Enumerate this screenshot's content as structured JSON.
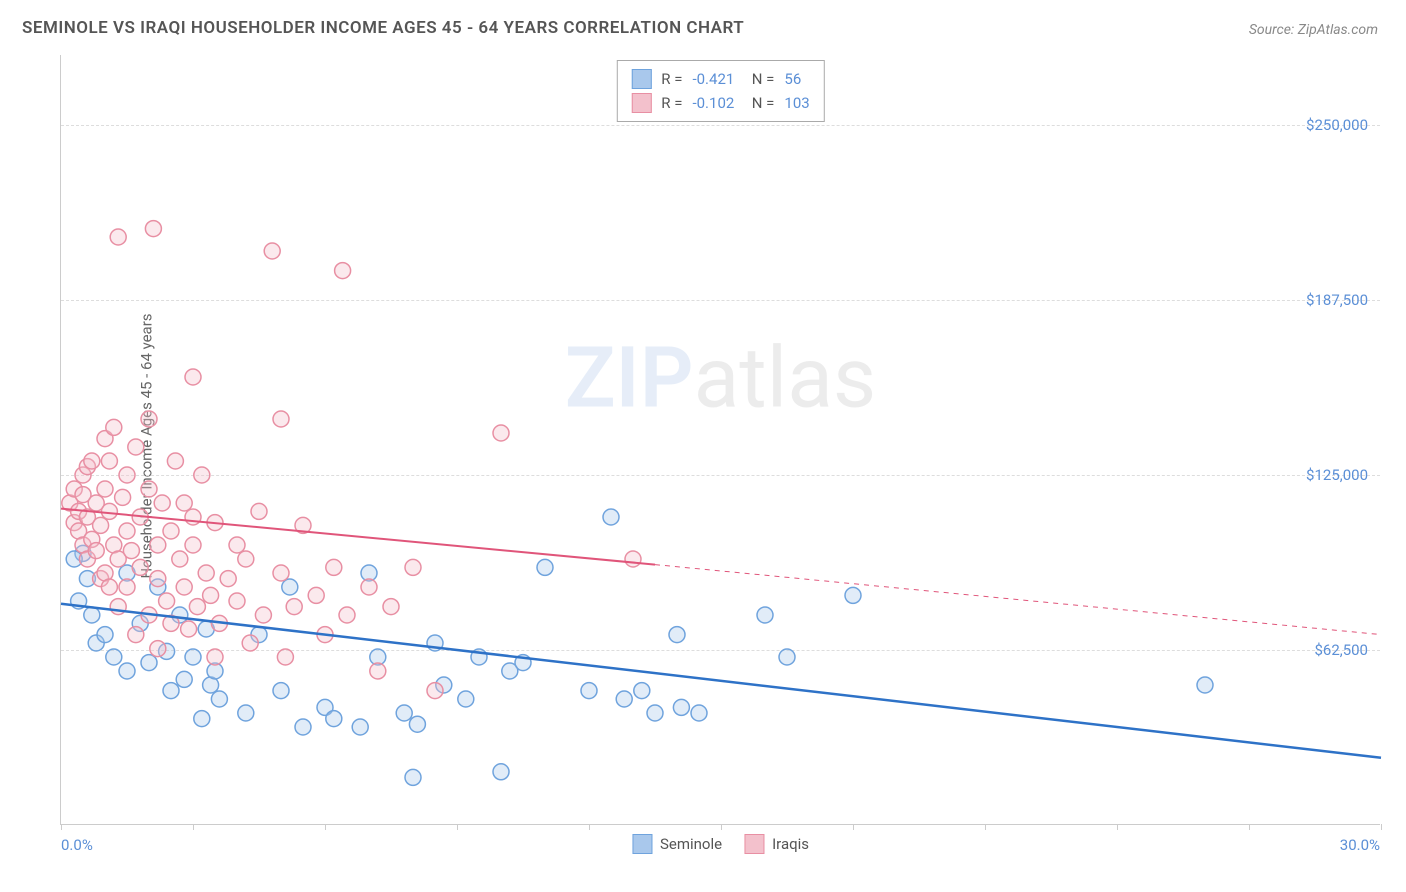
{
  "title": "SEMINOLE VS IRAQI HOUSEHOLDER INCOME AGES 45 - 64 YEARS CORRELATION CHART",
  "source": "Source: ZipAtlas.com",
  "y_axis_label": "Householder Income Ages 45 - 64 years",
  "watermark_zip": "ZIP",
  "watermark_atlas": "atlas",
  "chart": {
    "type": "scatter",
    "background_color": "#ffffff",
    "grid_color": "#dddddd",
    "axis_color": "#cccccc",
    "xlim": [
      0,
      30
    ],
    "ylim": [
      0,
      275000
    ],
    "x_min_label": "0.0%",
    "x_max_label": "30.0%",
    "x_ticks": [
      0,
      3,
      6,
      9,
      12,
      15,
      18,
      21,
      24,
      27,
      30
    ],
    "y_gridlines": [
      {
        "value": 62500,
        "label": "$62,500"
      },
      {
        "value": 125000,
        "label": "$125,000"
      },
      {
        "value": 187500,
        "label": "$187,500"
      },
      {
        "value": 250000,
        "label": "$250,000"
      }
    ],
    "marker_radius": 8,
    "marker_fill_opacity": 0.35,
    "marker_stroke_width": 1.5,
    "series": [
      {
        "name": "Seminole",
        "color_fill": "#a9c8ec",
        "color_stroke": "#6fa3dd",
        "trend_color": "#2e72c7",
        "trend_width": 2.5,
        "trend_start": {
          "x": 0,
          "y": 79000
        },
        "trend_solid_end": {
          "x": 30,
          "y": 24000
        },
        "trend_dashed_end": null,
        "R": "-0.421",
        "N": "56",
        "points": [
          {
            "x": 0.5,
            "y": 97000
          },
          {
            "x": 0.4,
            "y": 80000
          },
          {
            "x": 0.6,
            "y": 88000
          },
          {
            "x": 0.3,
            "y": 95000
          },
          {
            "x": 0.7,
            "y": 75000
          },
          {
            "x": 0.8,
            "y": 65000
          },
          {
            "x": 1.2,
            "y": 60000
          },
          {
            "x": 1.0,
            "y": 68000
          },
          {
            "x": 1.5,
            "y": 55000
          },
          {
            "x": 1.5,
            "y": 90000
          },
          {
            "x": 1.8,
            "y": 72000
          },
          {
            "x": 2.0,
            "y": 58000
          },
          {
            "x": 2.2,
            "y": 85000
          },
          {
            "x": 2.4,
            "y": 62000
          },
          {
            "x": 2.5,
            "y": 48000
          },
          {
            "x": 2.7,
            "y": 75000
          },
          {
            "x": 2.8,
            "y": 52000
          },
          {
            "x": 3.0,
            "y": 60000
          },
          {
            "x": 3.2,
            "y": 38000
          },
          {
            "x": 3.3,
            "y": 70000
          },
          {
            "x": 3.4,
            "y": 50000
          },
          {
            "x": 3.5,
            "y": 55000
          },
          {
            "x": 3.6,
            "y": 45000
          },
          {
            "x": 4.2,
            "y": 40000
          },
          {
            "x": 4.5,
            "y": 68000
          },
          {
            "x": 5.0,
            "y": 48000
          },
          {
            "x": 5.2,
            "y": 85000
          },
          {
            "x": 5.5,
            "y": 35000
          },
          {
            "x": 6.0,
            "y": 42000
          },
          {
            "x": 6.2,
            "y": 38000
          },
          {
            "x": 6.8,
            "y": 35000
          },
          {
            "x": 7.0,
            "y": 90000
          },
          {
            "x": 7.2,
            "y": 60000
          },
          {
            "x": 7.8,
            "y": 40000
          },
          {
            "x": 8.0,
            "y": 17000
          },
          {
            "x": 8.1,
            "y": 36000
          },
          {
            "x": 8.5,
            "y": 65000
          },
          {
            "x": 8.7,
            "y": 50000
          },
          {
            "x": 9.2,
            "y": 45000
          },
          {
            "x": 9.5,
            "y": 60000
          },
          {
            "x": 10.0,
            "y": 19000
          },
          {
            "x": 10.2,
            "y": 55000
          },
          {
            "x": 10.5,
            "y": 58000
          },
          {
            "x": 11.0,
            "y": 92000
          },
          {
            "x": 12.0,
            "y": 48000
          },
          {
            "x": 12.5,
            "y": 110000
          },
          {
            "x": 12.8,
            "y": 45000
          },
          {
            "x": 13.2,
            "y": 48000
          },
          {
            "x": 13.5,
            "y": 40000
          },
          {
            "x": 14.0,
            "y": 68000
          },
          {
            "x": 14.1,
            "y": 42000
          },
          {
            "x": 14.5,
            "y": 40000
          },
          {
            "x": 16.0,
            "y": 75000
          },
          {
            "x": 16.5,
            "y": 60000
          },
          {
            "x": 18.0,
            "y": 82000
          },
          {
            "x": 26.0,
            "y": 50000
          }
        ]
      },
      {
        "name": "Iraqis",
        "color_fill": "#f3c1cc",
        "color_stroke": "#e88fa3",
        "trend_color": "#e0557a",
        "trend_width": 2,
        "trend_start": {
          "x": 0,
          "y": 113000
        },
        "trend_solid_end": {
          "x": 13.5,
          "y": 93000
        },
        "trend_dashed_end": {
          "x": 30,
          "y": 68000
        },
        "R": "-0.102",
        "N": "103",
        "points": [
          {
            "x": 0.2,
            "y": 115000
          },
          {
            "x": 0.3,
            "y": 108000
          },
          {
            "x": 0.3,
            "y": 120000
          },
          {
            "x": 0.4,
            "y": 112000
          },
          {
            "x": 0.4,
            "y": 105000
          },
          {
            "x": 0.5,
            "y": 100000
          },
          {
            "x": 0.5,
            "y": 118000
          },
          {
            "x": 0.5,
            "y": 125000
          },
          {
            "x": 0.6,
            "y": 110000
          },
          {
            "x": 0.6,
            "y": 95000
          },
          {
            "x": 0.6,
            "y": 128000
          },
          {
            "x": 0.7,
            "y": 102000
          },
          {
            "x": 0.7,
            "y": 130000
          },
          {
            "x": 0.8,
            "y": 115000
          },
          {
            "x": 0.8,
            "y": 98000
          },
          {
            "x": 0.9,
            "y": 107000
          },
          {
            "x": 0.9,
            "y": 88000
          },
          {
            "x": 1.0,
            "y": 120000
          },
          {
            "x": 1.0,
            "y": 90000
          },
          {
            "x": 1.0,
            "y": 138000
          },
          {
            "x": 1.1,
            "y": 112000
          },
          {
            "x": 1.1,
            "y": 85000
          },
          {
            "x": 1.1,
            "y": 130000
          },
          {
            "x": 1.2,
            "y": 100000
          },
          {
            "x": 1.2,
            "y": 142000
          },
          {
            "x": 1.3,
            "y": 95000
          },
          {
            "x": 1.3,
            "y": 78000
          },
          {
            "x": 1.3,
            "y": 210000
          },
          {
            "x": 1.4,
            "y": 117000
          },
          {
            "x": 1.5,
            "y": 105000
          },
          {
            "x": 1.5,
            "y": 85000
          },
          {
            "x": 1.5,
            "y": 125000
          },
          {
            "x": 1.6,
            "y": 98000
          },
          {
            "x": 1.7,
            "y": 135000
          },
          {
            "x": 1.7,
            "y": 68000
          },
          {
            "x": 1.8,
            "y": 110000
          },
          {
            "x": 1.8,
            "y": 92000
          },
          {
            "x": 2.0,
            "y": 120000
          },
          {
            "x": 2.0,
            "y": 75000
          },
          {
            "x": 2.0,
            "y": 145000
          },
          {
            "x": 2.1,
            "y": 213000
          },
          {
            "x": 2.2,
            "y": 100000
          },
          {
            "x": 2.2,
            "y": 63000
          },
          {
            "x": 2.2,
            "y": 88000
          },
          {
            "x": 2.3,
            "y": 115000
          },
          {
            "x": 2.4,
            "y": 80000
          },
          {
            "x": 2.5,
            "y": 105000
          },
          {
            "x": 2.5,
            "y": 72000
          },
          {
            "x": 2.6,
            "y": 130000
          },
          {
            "x": 2.7,
            "y": 95000
          },
          {
            "x": 2.8,
            "y": 85000
          },
          {
            "x": 2.8,
            "y": 115000
          },
          {
            "x": 2.9,
            "y": 70000
          },
          {
            "x": 3.0,
            "y": 110000
          },
          {
            "x": 3.0,
            "y": 100000
          },
          {
            "x": 3.0,
            "y": 160000
          },
          {
            "x": 3.1,
            "y": 78000
          },
          {
            "x": 3.2,
            "y": 125000
          },
          {
            "x": 3.3,
            "y": 90000
          },
          {
            "x": 3.4,
            "y": 82000
          },
          {
            "x": 3.5,
            "y": 60000
          },
          {
            "x": 3.5,
            "y": 108000
          },
          {
            "x": 3.6,
            "y": 72000
          },
          {
            "x": 3.8,
            "y": 88000
          },
          {
            "x": 4.0,
            "y": 80000
          },
          {
            "x": 4.0,
            "y": 100000
          },
          {
            "x": 4.2,
            "y": 95000
          },
          {
            "x": 4.3,
            "y": 65000
          },
          {
            "x": 4.5,
            "y": 112000
          },
          {
            "x": 4.6,
            "y": 75000
          },
          {
            "x": 4.8,
            "y": 205000
          },
          {
            "x": 5.0,
            "y": 90000
          },
          {
            "x": 5.0,
            "y": 145000
          },
          {
            "x": 5.1,
            "y": 60000
          },
          {
            "x": 5.3,
            "y": 78000
          },
          {
            "x": 5.5,
            "y": 107000
          },
          {
            "x": 5.8,
            "y": 82000
          },
          {
            "x": 6.0,
            "y": 68000
          },
          {
            "x": 6.2,
            "y": 92000
          },
          {
            "x": 6.4,
            "y": 198000
          },
          {
            "x": 6.5,
            "y": 75000
          },
          {
            "x": 7.0,
            "y": 85000
          },
          {
            "x": 7.2,
            "y": 55000
          },
          {
            "x": 7.5,
            "y": 78000
          },
          {
            "x": 8.0,
            "y": 92000
          },
          {
            "x": 8.5,
            "y": 48000
          },
          {
            "x": 10.0,
            "y": 140000
          },
          {
            "x": 13.0,
            "y": 95000
          }
        ]
      }
    ],
    "legend_bottom": [
      {
        "label": "Seminole",
        "fill": "#a9c8ec",
        "stroke": "#6fa3dd"
      },
      {
        "label": "Iraqis",
        "fill": "#f3c1cc",
        "stroke": "#e88fa3"
      }
    ]
  }
}
